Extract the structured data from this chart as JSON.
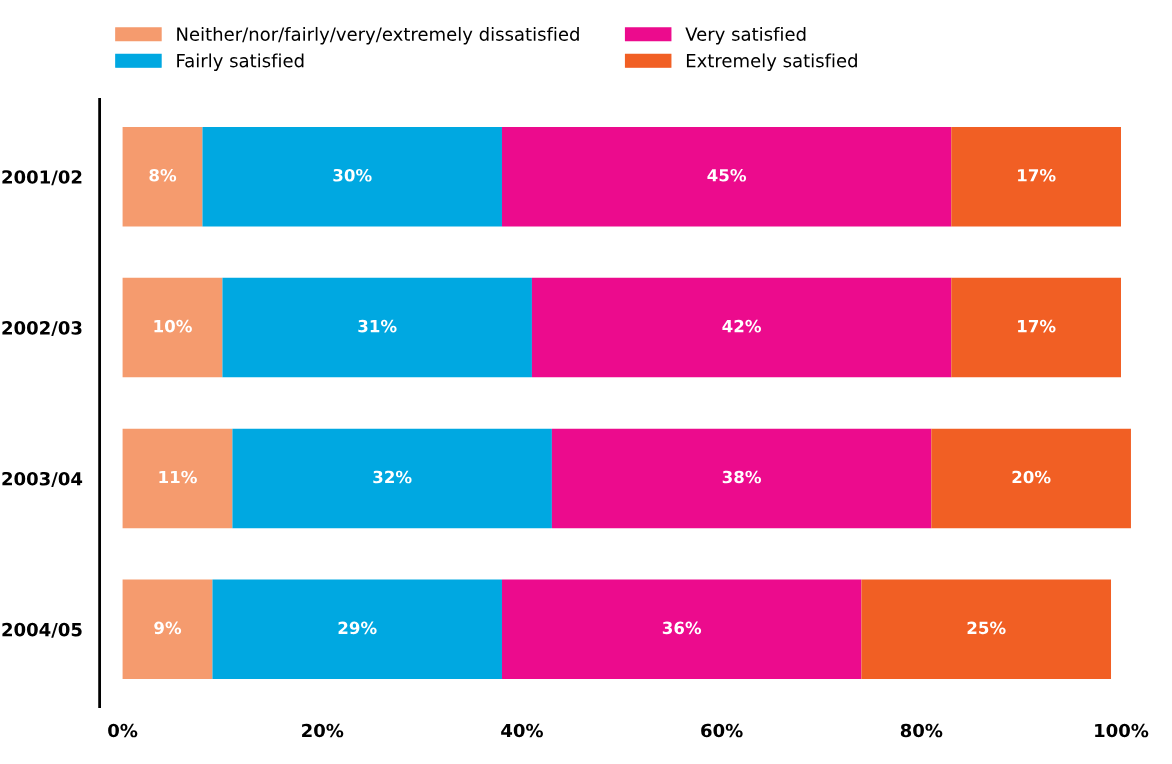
{
  "chart_data": {
    "type": "bar",
    "orientation": "horizontal",
    "stacked": true,
    "grid": false,
    "legend": "top",
    "categories": [
      "2001/02",
      "2002/03",
      "2003/04",
      "2004/05"
    ],
    "series": [
      {
        "name": "Neither/nor/fairly/very/extremely dissatisfied",
        "color": "#f59b6e",
        "values": [
          8,
          10,
          11,
          9
        ],
        "value_labels": [
          "8%",
          "10%",
          "11%",
          "9%"
        ]
      },
      {
        "name": "Fairly satisfied",
        "color": "#00a8e1",
        "values": [
          30,
          31,
          32,
          29
        ],
        "value_labels": [
          "30%",
          "31%",
          "32%",
          "29%"
        ]
      },
      {
        "name": "Very satisfied",
        "color": "#ec0b8d",
        "values": [
          45,
          42,
          38,
          36
        ],
        "value_labels": [
          "45%",
          "42%",
          "38%",
          "36%"
        ]
      },
      {
        "name": "Extremely satisfied",
        "color": "#f15f24",
        "values": [
          17,
          17,
          20,
          25
        ],
        "value_labels": [
          "17%",
          "17%",
          "20%",
          "25%"
        ]
      }
    ],
    "xlim": [
      -2.3,
      101
    ],
    "xticks": [
      {
        "value": 0,
        "label": "0%"
      },
      {
        "value": 20,
        "label": "20%"
      },
      {
        "value": 40,
        "label": "40%"
      },
      {
        "value": 60,
        "label": "60%"
      },
      {
        "value": 80,
        "label": "80%"
      },
      {
        "value": 100,
        "label": "100%"
      }
    ]
  }
}
